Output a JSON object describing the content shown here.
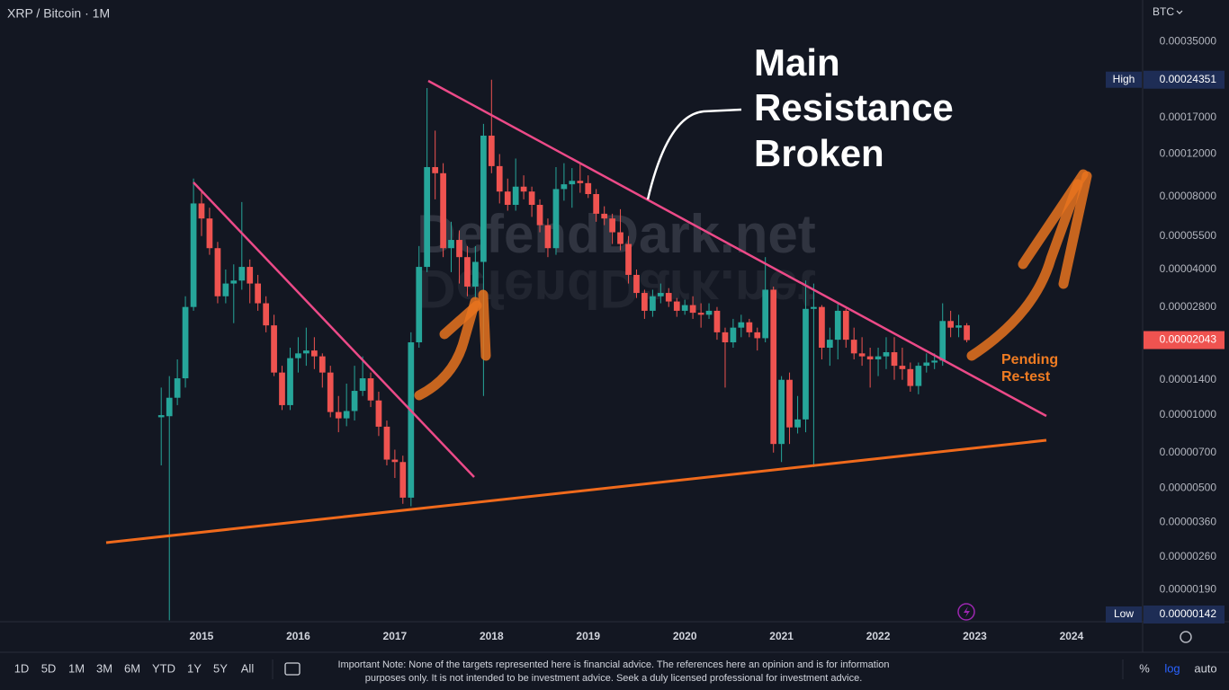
{
  "chart_data": {
    "type": "candlestick",
    "title": "XRP / Bitcoin · 1M",
    "currency": "BTC",
    "log_scale": true,
    "up_color": "#26a69a",
    "down_color": "#ef5350",
    "xlim": [
      2012.915,
      2024.736
    ],
    "xticks": [
      2015,
      2016,
      2017,
      2018,
      2019,
      2020,
      2021,
      2022,
      2023,
      2024
    ],
    "ylim": [
      1.4e-06,
      0.00052
    ],
    "yticks": [
      {
        "value": 0.00035,
        "label": "0.00035000"
      },
      {
        "value": 0.00017,
        "label": "0.00017000"
      },
      {
        "value": 0.00012,
        "label": "0.00012000"
      },
      {
        "value": 8e-05,
        "label": "0.00008000"
      },
      {
        "value": 5.5e-05,
        "label": "0.00005500"
      },
      {
        "value": 4e-05,
        "label": "0.00004000"
      },
      {
        "value": 2.8e-05,
        "label": "0.00002800"
      },
      {
        "value": 1.4e-05,
        "label": "0.00001400"
      },
      {
        "value": 1e-05,
        "label": "0.00001000"
      },
      {
        "value": 7e-06,
        "label": "0.00000700"
      },
      {
        "value": 5e-06,
        "label": "0.00000500"
      },
      {
        "value": 3.6e-06,
        "label": "0.00000360"
      },
      {
        "value": 2.6e-06,
        "label": "0.00000260"
      },
      {
        "value": 1.9e-06,
        "label": "0.00000190"
      }
    ],
    "x": [
      2014.583,
      2014.667,
      2014.75,
      2014.833,
      2014.917,
      2015,
      2015.083,
      2015.167,
      2015.25,
      2015.333,
      2015.417,
      2015.5,
      2015.583,
      2015.667,
      2015.75,
      2015.833,
      2015.917,
      2016,
      2016.083,
      2016.167,
      2016.25,
      2016.333,
      2016.417,
      2016.5,
      2016.583,
      2016.667,
      2016.75,
      2016.833,
      2016.917,
      2017,
      2017.083,
      2017.167,
      2017.25,
      2017.333,
      2017.417,
      2017.5,
      2017.583,
      2017.667,
      2017.75,
      2017.833,
      2017.917,
      2018,
      2018.083,
      2018.167,
      2018.25,
      2018.333,
      2018.417,
      2018.5,
      2018.583,
      2018.667,
      2018.75,
      2018.833,
      2018.917,
      2019,
      2019.083,
      2019.167,
      2019.25,
      2019.333,
      2019.417,
      2019.5,
      2019.583,
      2019.667,
      2019.75,
      2019.833,
      2019.917,
      2020,
      2020.083,
      2020.167,
      2020.25,
      2020.333,
      2020.417,
      2020.5,
      2020.583,
      2020.667,
      2020.75,
      2020.833,
      2020.917,
      2021,
      2021.083,
      2021.167,
      2021.25,
      2021.333,
      2021.417,
      2021.5,
      2021.583,
      2021.667,
      2021.75,
      2021.833,
      2021.917,
      2022,
      2022.083,
      2022.167,
      2022.25,
      2022.333,
      2022.417,
      2022.5,
      2022.583,
      2022.667,
      2022.75,
      2022.833,
      2022.917
    ],
    "open": [
      9.8e-06,
      9.9e-06,
      1.18e-05,
      1.42e-05,
      2.8e-05,
      7.5e-05,
      6.5e-05,
      4.9e-05,
      3.1e-05,
      3.5e-05,
      3.6e-05,
      4.1e-05,
      3.5e-05,
      2.9e-05,
      2.35e-05,
      1.5e-05,
      1.1e-05,
      1.72e-05,
      1.8e-05,
      1.85e-05,
      1.75e-05,
      1.5e-05,
      1.03e-05,
      9.7e-06,
      1.04e-05,
      1.26e-05,
      1.42e-05,
      1.15e-05,
      8.96e-06,
      6.55e-06,
      6.4e-06,
      4.56e-06,
      2e-05,
      4.1e-05,
      0.000106,
      0.0001,
      4.9e-05,
      5.3e-05,
      4.5e-05,
      3.4e-05,
      4.3e-05,
      0.000143,
      0.000107,
      8.4e-05,
      7.4e-05,
      8.8e-05,
      8.4e-05,
      7.4e-05,
      6.1e-05,
      4.9e-05,
      8.6e-05,
      9e-05,
      9.3e-05,
      9.1e-05,
      8.2e-05,
      6.8e-05,
      6.5e-05,
      5.7e-05,
      5.1e-05,
      3.8e-05,
      3.2e-05,
      2.7e-05,
      3.1e-05,
      3.2e-05,
      2.95e-05,
      2.7e-05,
      2.85e-05,
      2.65e-05,
      2.6e-05,
      2.7e-05,
      2.2e-05,
      2e-05,
      2.3e-05,
      2.42e-05,
      2.2e-05,
      2.08e-05,
      3.3e-05,
      7.6e-06,
      1.4e-05,
      8.9e-06,
      9.6e-06,
      2.75e-05,
      2.8e-05,
      1.9e-05,
      2.05e-05,
      2.7e-05,
      2.05e-05,
      1.8e-05,
      1.75e-05,
      1.7e-05,
      1.75e-05,
      1.82e-05,
      1.6e-05,
      1.55e-05,
      1.32e-05,
      1.6e-05,
      1.65e-05,
      1.68e-05,
      2.45e-05,
      2.3e-05,
      2.35e-05
    ],
    "high": [
      1.3e-05,
      1.45e-05,
      1.7e-05,
      3.1e-05,
      9.5e-05,
      8.5e-05,
      7.2e-05,
      5.2e-05,
      4e-05,
      4.2e-05,
      7.6e-05,
      4.4e-05,
      3.8e-05,
      3.1e-05,
      2.6e-05,
      1.6e-05,
      1.9e-05,
      2.1e-05,
      2.3e-05,
      2.1e-05,
      1.8e-05,
      1.6e-05,
      1.2e-05,
      1.35e-05,
      1.6e-05,
      1.75e-05,
      1.5e-05,
      1.25e-05,
      9.5e-06,
      7.2e-06,
      6.8e-06,
      2.2e-05,
      5e-05,
      0.000225,
      0.00015,
      0.00011,
      6.3e-05,
      5.8e-05,
      5e-05,
      5e-05,
      0.00016,
      0.00024351,
      0.00012,
      9.5e-05,
      0.000115,
      9.8e-05,
      8.8e-05,
      7.8e-05,
      6.5e-05,
      0.000106,
      0.00011,
      0.000105,
      0.00011,
      9.8e-05,
      8.6e-05,
      7.3e-05,
      6.8e-05,
      7.1e-05,
      5.5e-05,
      4e-05,
      3.3e-05,
      3.3e-05,
      3.5e-05,
      3.35e-05,
      3.05e-05,
      3e-05,
      3.1e-05,
      2.9e-05,
      2.9e-05,
      2.8e-05,
      2.3e-05,
      2.5e-05,
      2.6e-05,
      2.5e-05,
      2.3e-05,
      4.5e-05,
      3.4e-05,
      1.45e-05,
      1.5e-05,
      1.2e-05,
      3.6e-05,
      3.5e-05,
      2.85e-05,
      2.3e-05,
      2.9e-05,
      2.75e-05,
      2.3e-05,
      2.1e-05,
      1.9e-05,
      1.9e-05,
      2.1e-05,
      2.1e-05,
      1.9e-05,
      1.65e-05,
      1.65e-05,
      1.8e-05,
      1.8e-05,
      2.9e-05,
      2.7e-05,
      2.6e-05,
      2.4e-05
    ],
    "low": [
      6.2e-06,
      1.42e-06,
      1.1e-05,
      1.3e-05,
      2.7e-05,
      5.5e-05,
      4.6e-05,
      2.9e-05,
      2.9e-05,
      2.4e-05,
      3.3e-05,
      2.9e-05,
      2.7e-05,
      2.2e-05,
      1.45e-05,
      1.05e-05,
      1.05e-05,
      1.5e-05,
      1.6e-05,
      1.55e-05,
      1.3e-05,
      9.8e-06,
      8.5e-06,
      9e-06,
      9.5e-06,
      1.2e-05,
      1.08e-05,
      8.2e-06,
      6.2e-06,
      5.5e-06,
      4.3e-06,
      4.2e-06,
      1.9e-05,
      3.9e-05,
      7.8e-05,
      4.5e-05,
      3.9e-05,
      3.5e-05,
      3.1e-05,
      3e-05,
      1.2e-05,
      0.0001,
      7.5e-05,
      7e-05,
      7e-05,
      7.8e-05,
      6.6e-05,
      5.7e-05,
      4.5e-05,
      4.6e-05,
      7.7e-05,
      7.2e-05,
      8.3e-05,
      7.9e-05,
      6.3e-05,
      6.1e-05,
      5.1e-05,
      4.8e-05,
      3.5e-05,
      3.05e-05,
      2.5e-05,
      2.55e-05,
      2.9e-05,
      2.8e-05,
      2.55e-05,
      2.6e-05,
      2.5e-05,
      2.3e-05,
      2.5e-05,
      2.05e-05,
      1.3e-05,
      1.9e-05,
      2.1e-05,
      2.1e-05,
      1.85e-05,
      2e-05,
      7e-06,
      6.4e-06,
      7.6e-06,
      8.4e-06,
      8.5e-06,
      6.1e-06,
      1.7e-05,
      1.6e-05,
      1.7e-05,
      1.9e-05,
      1.7e-05,
      1.6e-05,
      1.3e-05,
      1.45e-05,
      1.55e-05,
      1.4e-05,
      1.4e-05,
      1.25e-05,
      1.22e-05,
      1.5e-05,
      1.55e-05,
      1.6e-05,
      2.1e-05,
      2.1e-05,
      2e-05
    ],
    "close": [
      1e-05,
      1.18e-05,
      1.42e-05,
      2.8e-05,
      7.5e-05,
      6.5e-05,
      4.9e-05,
      3.1e-05,
      3.5e-05,
      3.6e-05,
      4.1e-05,
      3.5e-05,
      2.9e-05,
      2.35e-05,
      1.5e-05,
      1.1e-05,
      1.72e-05,
      1.8e-05,
      1.85e-05,
      1.75e-05,
      1.5e-05,
      1.03e-05,
      9.7e-06,
      1.04e-05,
      1.26e-05,
      1.42e-05,
      1.15e-05,
      8.96e-06,
      6.55e-06,
      6.4e-06,
      4.56e-06,
      2e-05,
      4.1e-05,
      0.000106,
      0.0001,
      4.9e-05,
      5.3e-05,
      4.5e-05,
      3.4e-05,
      4.3e-05,
      0.000143,
      0.000107,
      8.4e-05,
      7.4e-05,
      8.8e-05,
      8.4e-05,
      7.4e-05,
      6.1e-05,
      4.9e-05,
      8.6e-05,
      9e-05,
      9.3e-05,
      9.1e-05,
      8.2e-05,
      6.8e-05,
      6.5e-05,
      5.7e-05,
      5.1e-05,
      3.8e-05,
      3.2e-05,
      2.7e-05,
      3.1e-05,
      3.2e-05,
      2.95e-05,
      2.7e-05,
      2.85e-05,
      2.65e-05,
      2.6e-05,
      2.7e-05,
      2.2e-05,
      2e-05,
      2.3e-05,
      2.42e-05,
      2.2e-05,
      2.08e-05,
      3.3e-05,
      7.6e-06,
      1.4e-05,
      8.9e-06,
      9.6e-06,
      2.75e-05,
      2.8e-05,
      1.9e-05,
      2.05e-05,
      2.7e-05,
      2.05e-05,
      1.8e-05,
      1.75e-05,
      1.7e-05,
      1.75e-05,
      1.82e-05,
      1.6e-05,
      1.55e-05,
      1.32e-05,
      1.6e-05,
      1.65e-05,
      1.68e-05,
      2.45e-05,
      2.3e-05,
      2.35e-05,
      2.043e-05
    ],
    "high_marker": {
      "name": "High",
      "value": 0.00024351,
      "label": "0.00024351"
    },
    "low_marker": {
      "name": "Low",
      "value": 1.42e-06,
      "label": "0.00000142"
    },
    "last_price": {
      "value": 2.043e-05,
      "label": "0.00002043"
    },
    "watermark": "DefendDark.net",
    "annotations": [
      {
        "text": [
          "Main",
          "Resistance",
          "Broken"
        ]
      },
      {
        "text": [
          "Pending",
          "Re-test"
        ]
      }
    ]
  },
  "toolbar": {
    "ranges": [
      "1D",
      "5D",
      "1M",
      "3M",
      "6M",
      "YTD",
      "1Y",
      "5Y",
      "All"
    ],
    "note": [
      "Important Note: None of the targets represented here is financial advice. The references here an opinion and is for information",
      "purposes only. It is not intended to be investment advice. Seek a duly licensed professional for investment advice."
    ],
    "scale_options": [
      "%",
      "log",
      "auto"
    ]
  }
}
